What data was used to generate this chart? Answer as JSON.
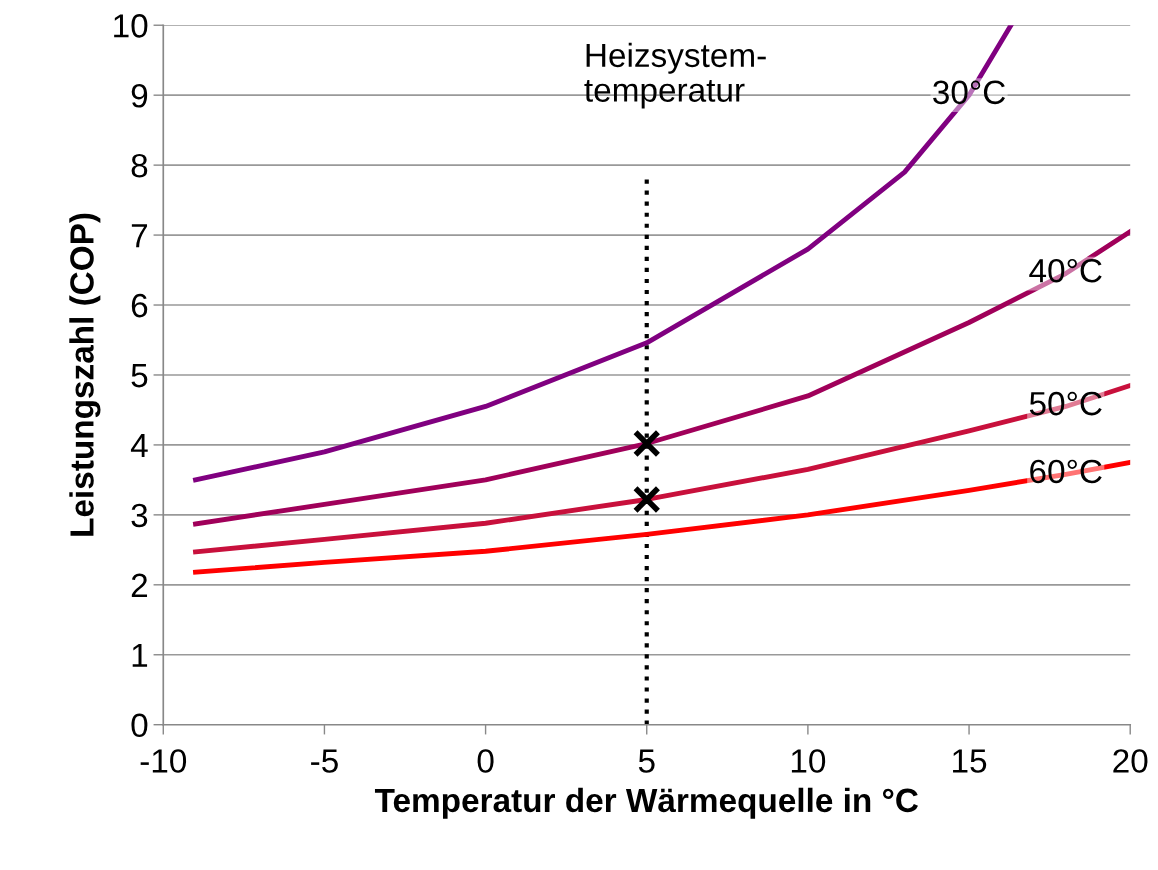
{
  "chart_data": {
    "type": "line",
    "xlabel": "Temperatur der Wärmequelle in °C",
    "ylabel": "Leistungszahl (COP)",
    "series": [
      {
        "name": "30°C",
        "color": "#800080",
        "x": [
          -9,
          -5,
          0,
          5,
          10,
          13,
          15,
          16.3
        ],
        "values": [
          3.5,
          3.9,
          4.55,
          5.46,
          6.8,
          7.9,
          9.0,
          10
        ]
      },
      {
        "name": "40°C",
        "color": "#a0005a",
        "x": [
          -9,
          -5,
          0,
          5,
          10,
          15,
          18,
          20
        ],
        "values": [
          2.87,
          3.15,
          3.5,
          4.02,
          4.7,
          5.75,
          6.45,
          7.05
        ]
      },
      {
        "name": "50°C",
        "color": "#c8103c",
        "x": [
          -9,
          -5,
          0,
          5,
          10,
          15,
          18,
          20
        ],
        "values": [
          2.47,
          2.65,
          2.88,
          3.22,
          3.65,
          4.2,
          4.55,
          4.85
        ]
      },
      {
        "name": "60°C",
        "color": "#ff0000",
        "x": [
          -9,
          -5,
          0,
          5,
          10,
          15,
          18,
          20
        ],
        "values": [
          2.18,
          2.32,
          2.48,
          2.72,
          3.0,
          3.35,
          3.58,
          3.75
        ]
      },
      {
        "type": "scatter",
        "color": "#000000",
        "marker": "cross",
        "x": [
          5,
          5
        ],
        "values": [
          4.02,
          3.22
        ]
      }
    ],
    "ref_lines": [
      {
        "axis": "x",
        "value": 5,
        "color": "#000000",
        "line_style": "dotted"
      }
    ],
    "annotations": [
      "Heizsystem-\ntemperatur"
    ],
    "xlim": [
      -10,
      20
    ],
    "xticks": [
      -10,
      -5,
      0,
      5,
      10,
      15,
      20
    ],
    "ylim": [
      0,
      10
    ],
    "yticks": [
      0,
      1,
      2,
      3,
      4,
      5,
      6,
      7,
      8,
      9,
      10
    ],
    "grid": "y",
    "legend": false
  }
}
